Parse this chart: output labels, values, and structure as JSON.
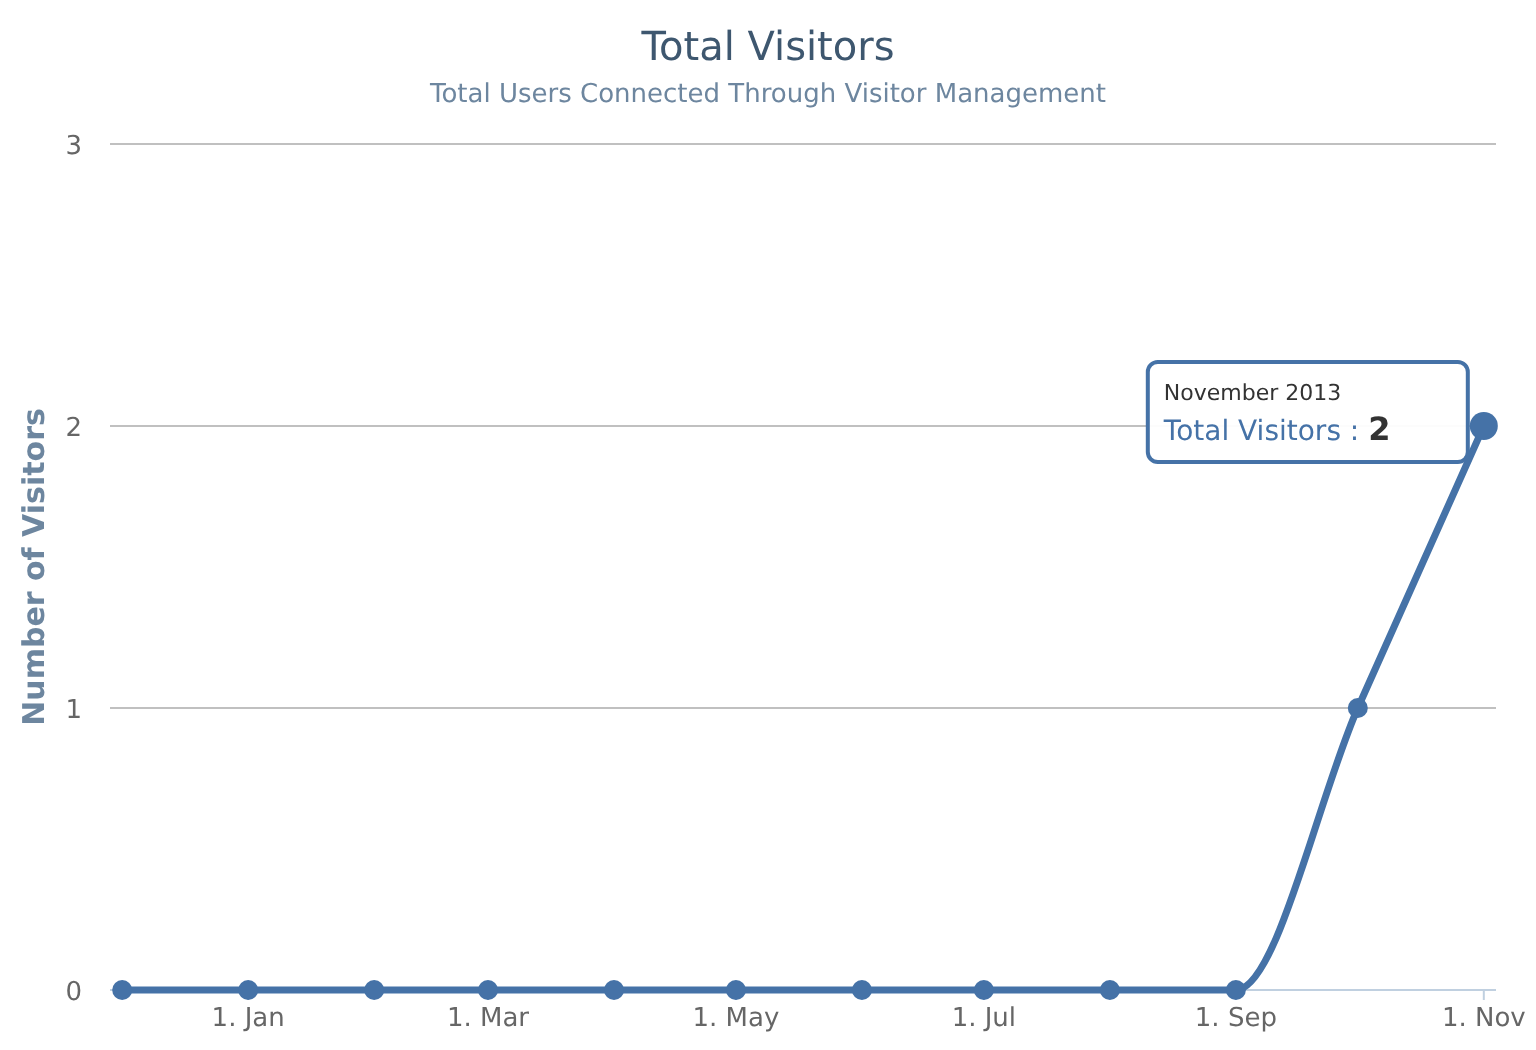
{
  "chart_data": {
    "type": "line",
    "title": "Total Visitors",
    "subtitle": "Total Users Connected Through Visitor Management",
    "ylabel": "Number of Visitors",
    "x": [
      "2012-12",
      "2013-01",
      "2013-02",
      "2013-03",
      "2013-04",
      "2013-05",
      "2013-06",
      "2013-07",
      "2013-08",
      "2013-09",
      "2013-10",
      "2013-11"
    ],
    "series": [
      {
        "color": "#4572a7",
        "values": [
          0,
          0,
          0,
          0,
          0,
          0,
          0,
          0,
          0,
          0,
          1,
          2
        ]
      }
    ],
    "xlim": [
      "2012-11-28",
      "2013-11-04"
    ],
    "xticks": [
      {
        "value": "2013-01-01",
        "label": "1. Jan"
      },
      {
        "value": "2013-03-01",
        "label": "1. Mar"
      },
      {
        "value": "2013-05-01",
        "label": "1. May"
      },
      {
        "value": "2013-07-01",
        "label": "1. Jul"
      },
      {
        "value": "2013-09-01",
        "label": "1. Sep"
      },
      {
        "value": "2013-11-01",
        "label": "1. Nov"
      }
    ],
    "ylim": [
      0,
      3
    ],
    "yticks": [
      0,
      1,
      2,
      3
    ],
    "grid": "y",
    "legend": false,
    "marker": "circle",
    "line_style": "solid",
    "annotations": [
      "November 2013\nTotal Visitors : 2"
    ]
  }
}
